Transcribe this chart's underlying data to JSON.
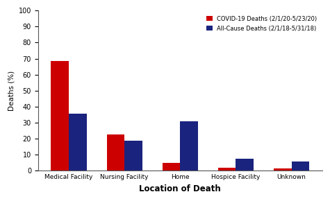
{
  "categories": [
    "Medical Facility",
    "Nursing Facility",
    "Home",
    "Hospice Facility",
    "Unknown"
  ],
  "covid_values": [
    68.5,
    22.5,
    5.0,
    2.0,
    1.5
  ],
  "allcause_values": [
    35.5,
    19.0,
    31.0,
    7.5,
    6.0
  ],
  "covid_color": "#cc0000",
  "allcause_color": "#1a237e",
  "covid_label": "COVID-19 Deaths (2/1/20-5/23/20)",
  "allcause_label": "All-Cause Deaths (2/1/18-5/31/18)",
  "xlabel": "Location of Death",
  "ylabel": "Deaths (%)",
  "ylim": [
    0,
    100
  ],
  "yticks": [
    0,
    10,
    20,
    30,
    40,
    50,
    60,
    70,
    80,
    90,
    100
  ],
  "bar_width": 0.32,
  "background_color": "#ffffff"
}
